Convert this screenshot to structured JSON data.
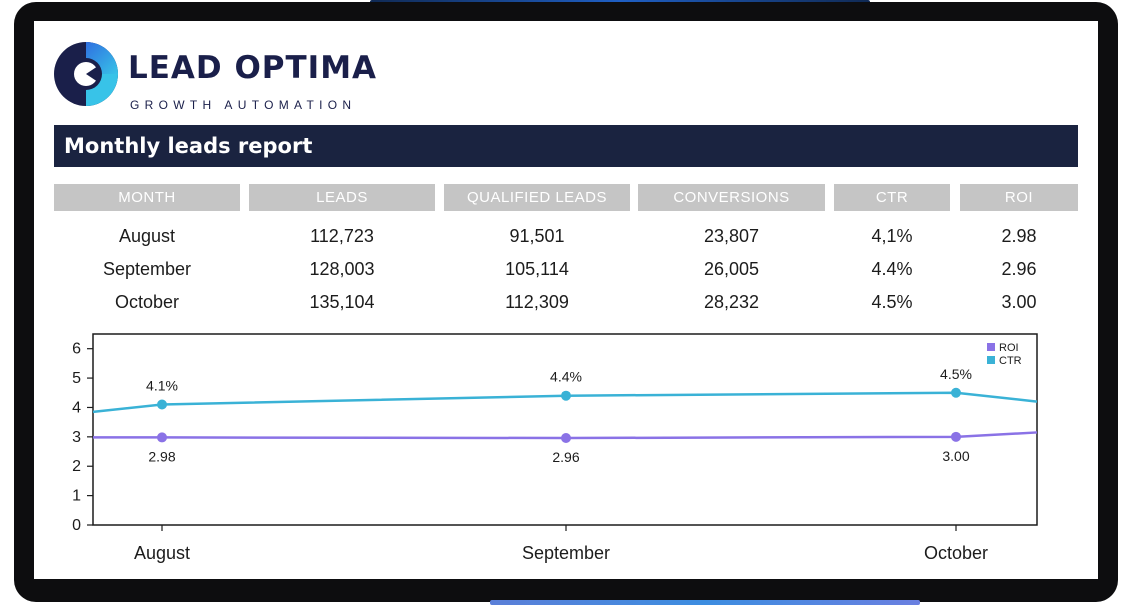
{
  "brand": {
    "name": "LEAD OPTIMA",
    "tagline": "GROWTH AUTOMATION",
    "colors": {
      "navy": "#1a1f4a",
      "blue": "#2f6fe0",
      "cyan": "#38c3e8"
    }
  },
  "report": {
    "title": "Monthly leads report",
    "columns": [
      "MONTH",
      "LEADS",
      "QUALIFIED LEADS",
      "CONVERSIONS",
      "CTR",
      "ROI"
    ],
    "rows": [
      [
        "August",
        "112,723",
        "91,501",
        "23,807",
        "4,1%",
        "2.98"
      ],
      [
        "September",
        "128,003",
        "105,114",
        "26,005",
        "4.4%",
        "2.96"
      ],
      [
        "October",
        "135,104",
        "112,309",
        "28,232",
        "4.5%",
        "3.00"
      ]
    ]
  },
  "chart_data": {
    "type": "line",
    "title": "",
    "xlabel": "",
    "ylabel": "",
    "categories": [
      "August",
      "September",
      "October"
    ],
    "ylim": [
      0,
      6.5
    ],
    "yticks": [
      "0",
      "1",
      "2",
      "3",
      "4",
      "5",
      "6"
    ],
    "legend_position": "top-right",
    "series": [
      {
        "name": "ROI",
        "color": "#8a72e6",
        "values": [
          2.98,
          2.96,
          3.0
        ],
        "labels": [
          "2.98",
          "2.96",
          "3.00"
        ],
        "label_pos": "below",
        "lead_in": 2.98,
        "lead_out": 3.15
      },
      {
        "name": "CTR",
        "color": "#3ab2d6",
        "values": [
          4.1,
          4.4,
          4.5
        ],
        "labels": [
          "4.1%",
          "4.4%",
          "4.5%"
        ],
        "label_pos": "above",
        "lead_in": 3.85,
        "lead_out": 4.2
      }
    ]
  }
}
